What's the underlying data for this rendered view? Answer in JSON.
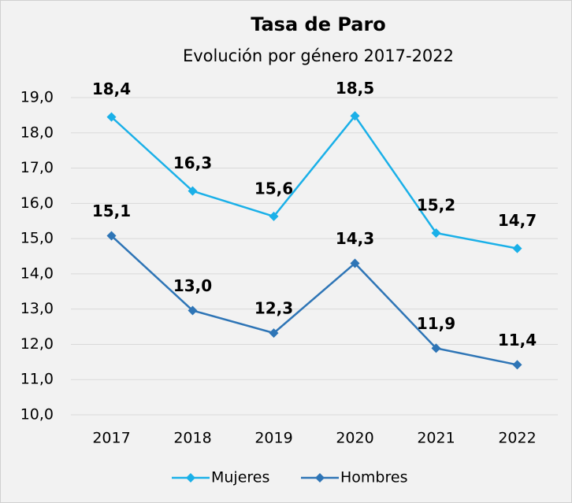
{
  "chart_data": {
    "type": "line",
    "title": "Tasa de Paro",
    "subtitle": "Evolución por género 2017-2022",
    "categories": [
      "2017",
      "2018",
      "2019",
      "2020",
      "2021",
      "2022"
    ],
    "series": [
      {
        "name": "Mujeres",
        "color": "#1ab0e8",
        "values": [
          18.45,
          16.35,
          15.63,
          18.48,
          15.16,
          14.72
        ],
        "value_labels": [
          "18,4",
          "16,3",
          "15,6",
          "18,5",
          "15,2",
          "14,7"
        ]
      },
      {
        "name": "Hombres",
        "color": "#2e75b6",
        "values": [
          15.08,
          12.96,
          12.32,
          14.3,
          11.89,
          11.42
        ],
        "value_labels": [
          "15,1",
          "13,0",
          "12,3",
          "14,3",
          "11,9",
          "11,4"
        ]
      }
    ],
    "ylim": [
      10,
      19
    ],
    "yticks": [
      {
        "value": 10,
        "label": "10,0"
      },
      {
        "value": 11,
        "label": "11,0"
      },
      {
        "value": 12,
        "label": "12,0"
      },
      {
        "value": 13,
        "label": "13,0"
      },
      {
        "value": 14,
        "label": "14,0"
      },
      {
        "value": 15,
        "label": "15,0"
      },
      {
        "value": 16,
        "label": "16,0"
      },
      {
        "value": 17,
        "label": "17,0"
      },
      {
        "value": 18,
        "label": "18,0"
      },
      {
        "value": 19,
        "label": "19,0"
      }
    ],
    "grid": true,
    "legend": "bottom"
  }
}
